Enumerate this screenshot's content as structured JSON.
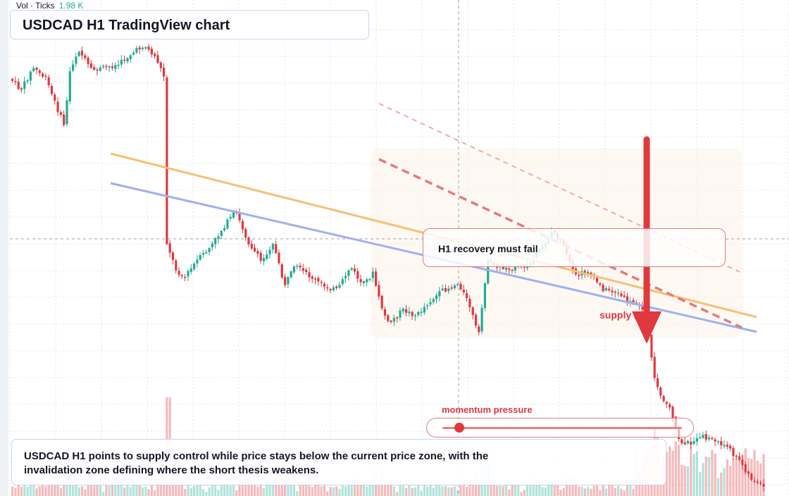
{
  "header": {
    "volume_label": "Vol · Ticks",
    "volume_value": "1.98 K",
    "title": "USDCAD H1 TradingView chart"
  },
  "annotations": {
    "callout": "H1 recovery must fail",
    "supply_label": "supply zone",
    "momentum_label": "momentum pressure",
    "momentum_level": 0.07
  },
  "summary": {
    "text": "USDCAD H1 points to supply control while price stays below the current price zone, with the invalidation zone defining where the short thesis weakens."
  },
  "colors": {
    "bull": "#22ab94",
    "bear": "#e0383e",
    "trend_orange": "#f7c076",
    "trend_blue": "#9db0f2",
    "channel_red": "#e57b7b",
    "arrow": "#e0383e",
    "grid": "#e3e6ec"
  }
}
